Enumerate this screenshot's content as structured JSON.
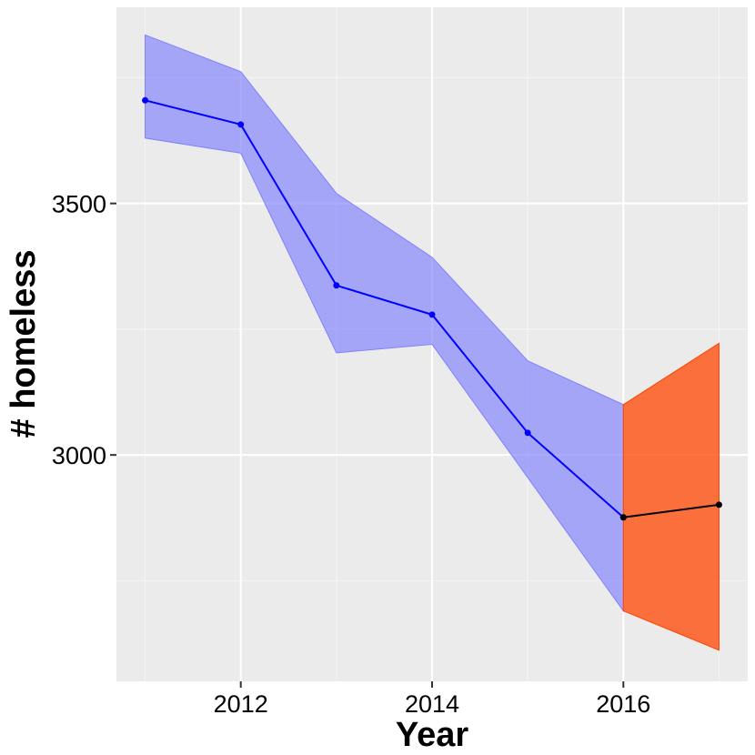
{
  "chart_data": {
    "type": "line",
    "xlabel": "Year",
    "ylabel": "# homeless",
    "xlim": [
      2010.7,
      2017.3
    ],
    "ylim": [
      2550,
      3890
    ],
    "x_ticks": [
      2012,
      2014,
      2016
    ],
    "x_minor_ticks": [
      2011,
      2013,
      2015,
      2017
    ],
    "y_ticks": [
      3000,
      3500
    ],
    "y_minor_ticks": [
      2750,
      3250,
      3750
    ],
    "grid": true,
    "series": [
      {
        "x": [
          2011,
          2012,
          2013,
          2014,
          2015,
          2016
        ],
        "y": [
          3705,
          3657,
          3337,
          3279,
          3044,
          2876
        ],
        "lower": [
          3630,
          3600,
          3203,
          3220,
          2955,
          2690
        ],
        "upper": [
          3835,
          3762,
          3520,
          3393,
          3187,
          3100
        ],
        "color": "#0000ff",
        "band_color": "#8080ff"
      },
      {
        "x": [
          2016,
          2017
        ],
        "y": [
          2876,
          2901
        ],
        "lower": [
          2690,
          2612
        ],
        "upper": [
          3100,
          3222
        ],
        "color": "#000000",
        "band_color": "#ff4500"
      }
    ],
    "colors": {
      "panel": "#ebebeb",
      "grid_major": "#ffffff",
      "grid_minor": "#f5f5f5",
      "tick": "#333333"
    }
  }
}
